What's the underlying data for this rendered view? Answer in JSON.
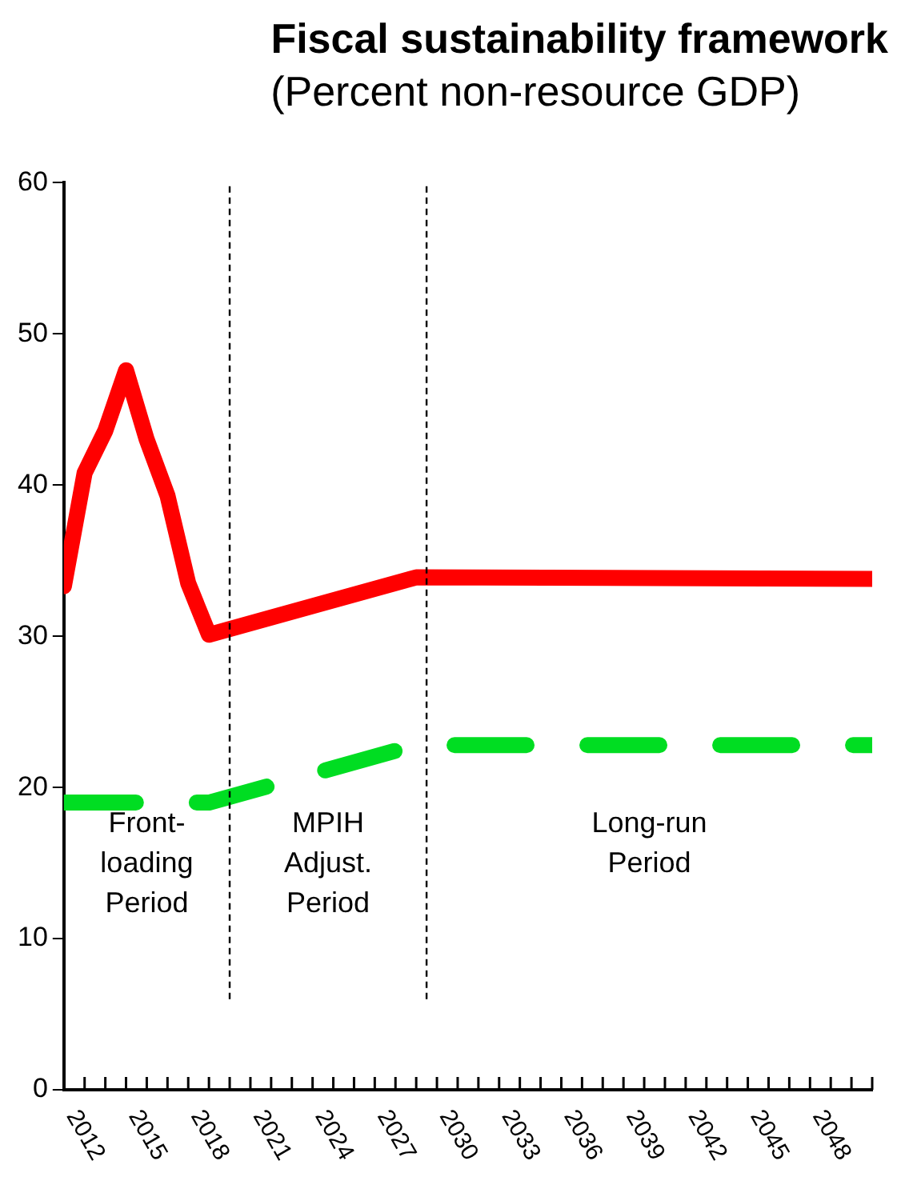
{
  "chart_data": {
    "type": "line",
    "title": "Fiscal sustainability framework",
    "subtitle": "(Percent non-resource GDP)",
    "series": [
      {
        "color": "#ff0000",
        "line_style": "solid",
        "x": [
          2011,
          2012,
          2013,
          2014,
          2015,
          2016,
          2017,
          2018,
          2028,
          2050
        ],
        "values": [
          33.3,
          40.8,
          43.6,
          47.6,
          43.0,
          39.3,
          33.5,
          30.1,
          33.9,
          33.8
        ]
      },
      {
        "color": "#00dd22",
        "line_style": "dashed",
        "x": [
          2011,
          2015,
          2018,
          2028,
          2050
        ],
        "values": [
          19.0,
          19.0,
          19.0,
          22.8,
          22.8
        ]
      }
    ],
    "xlim": [
      2011,
      2050
    ],
    "xticks": [
      {
        "value": 2011,
        "label": null
      },
      2012,
      {
        "value": 2013,
        "label": null
      },
      {
        "value": 2014,
        "label": null
      },
      2015,
      {
        "value": 2016,
        "label": null
      },
      {
        "value": 2017,
        "label": null
      },
      2018,
      {
        "value": 2019,
        "label": null
      },
      {
        "value": 2020,
        "label": null
      },
      2021,
      {
        "value": 2022,
        "label": null
      },
      {
        "value": 2023,
        "label": null
      },
      2024,
      {
        "value": 2025,
        "label": null
      },
      {
        "value": 2026,
        "label": null
      },
      2027,
      {
        "value": 2028,
        "label": null
      },
      {
        "value": 2029,
        "label": null
      },
      2030,
      {
        "value": 2031,
        "label": null
      },
      {
        "value": 2032,
        "label": null
      },
      2033,
      {
        "value": 2034,
        "label": null
      },
      {
        "value": 2035,
        "label": null
      },
      2036,
      {
        "value": 2037,
        "label": null
      },
      {
        "value": 2038,
        "label": null
      },
      2039,
      {
        "value": 2040,
        "label": null
      },
      {
        "value": 2041,
        "label": null
      },
      2042,
      {
        "value": 2043,
        "label": null
      },
      {
        "value": 2044,
        "label": null
      },
      2045,
      {
        "value": 2046,
        "label": null
      },
      {
        "value": 2047,
        "label": null
      },
      2048,
      {
        "value": 2049,
        "label": null
      },
      {
        "value": 2050,
        "label": null
      }
    ],
    "ylim": [
      0,
      60
    ],
    "yticks": [
      0,
      10,
      20,
      30,
      40,
      50,
      60
    ],
    "ref_lines": [
      {
        "axis": "x",
        "value": 2019,
        "color": "#000000",
        "line_style": "dashed"
      },
      {
        "axis": "x",
        "value": 2028.5,
        "color": "#000000",
        "line_style": "dashed"
      }
    ],
    "annotations": [
      "Front-\nloading\nPeriod",
      "MPIH\nAdjust.\nPeriod",
      "Long-run\nPeriod"
    ],
    "grid": false,
    "legend": false,
    "marker": "none"
  }
}
